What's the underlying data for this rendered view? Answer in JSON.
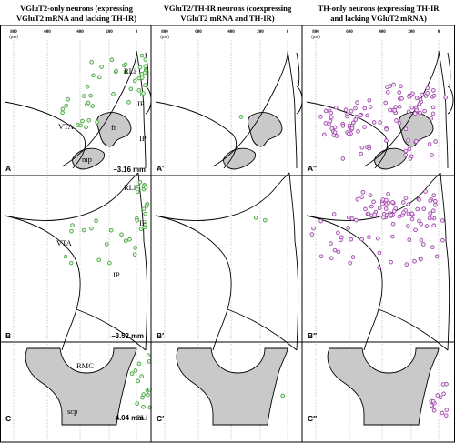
{
  "columns": [
    {
      "title_line1": "VGluT2-only neurons (expressing",
      "title_line2": "VGluT2 mRNA and lacking TH-IR)"
    },
    {
      "title_line1": "VGluT2/TH-IR neurons (coexpressing",
      "title_line2": "VGluT2 mRNA and TH-IR)"
    },
    {
      "title_line1": "TH-only neurons (expressing TH-IR",
      "title_line2": "and lacking VGluT2 mRNA)"
    }
  ],
  "scale": {
    "ticks": [
      "800",
      "600",
      "400",
      "200",
      "0"
    ],
    "unit": "(µm)"
  },
  "panels": {
    "A": "A",
    "A1": "A′",
    "A2": "A′′",
    "B": "B",
    "B1": "B′",
    "B2": "B′′",
    "C": "C",
    "C1": "C′",
    "C2": "C′′"
  },
  "levels": {
    "row1": "−3.16 mm",
    "row2": "−3.52 mm",
    "row3": "−4.04 mm"
  },
  "regions": {
    "RLi": "RLi",
    "IF": "IF",
    "IP": "IP",
    "VTA": "VTA",
    "fr": "fr",
    "mp": "mp",
    "RMC": "RMC",
    "scp": "scp",
    "CLi": "CLi"
  },
  "colors": {
    "vglut2_only": "#3f9e3a",
    "th_only": "#9a3fa6",
    "structure": "#c9c9c9"
  },
  "counts": {
    "A": 45,
    "A1": 1,
    "A2": 110,
    "B": 32,
    "B1": 2,
    "B2": 105,
    "C": 16,
    "C1": 1,
    "C2": 14
  }
}
